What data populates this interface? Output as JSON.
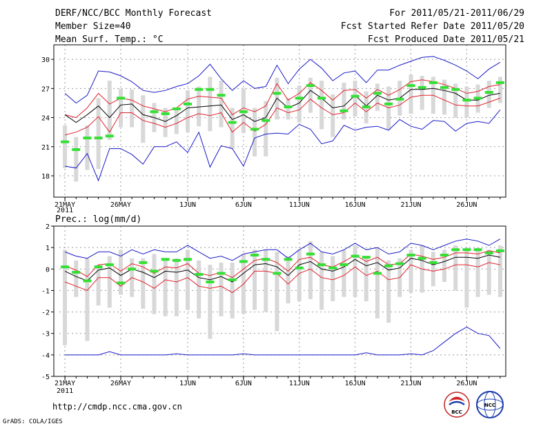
{
  "header": {
    "title": "DERF/NCC/BCC Monthly Forecast",
    "member_size": "Member Size=40",
    "for_range": "For 2011/05/21-2011/06/29",
    "started": "Fcst Started Refer Date 2011/05/20",
    "produced": "Fcst Produced Date 2011/05/21"
  },
  "footer": {
    "url": "http://cmdp.ncc.cma.gov.cn",
    "grads": "GrADS: COLA/IGES"
  },
  "logos": {
    "bcc_text": "BCC",
    "ncc_text": "NCC"
  },
  "colors": {
    "box": "#d8d8d8",
    "median": "#000000",
    "quartile": "#e0202a",
    "extreme": "#1818c8",
    "observed": "#33e033"
  },
  "chart_data": [
    {
      "type": "box-line",
      "title": "Mean Surf. Temp.: °C",
      "xlabel": "",
      "ylabel": "",
      "ylim": [
        15.8,
        31.5
      ],
      "yticks": [
        "18",
        "21",
        "24",
        "27",
        "30"
      ],
      "ytick_values": [
        18,
        21,
        24,
        27,
        30
      ],
      "grid": true,
      "days": 40,
      "xticks": [
        "21MAY",
        "26MAY",
        "1JUN",
        "6JUN",
        "11JUN",
        "16JUN",
        "21JUN",
        "26JUN"
      ],
      "xtick_days": [
        0,
        5,
        11,
        16,
        21,
        26,
        31,
        36
      ],
      "year_label": "2011",
      "median": [
        24.3,
        23.5,
        24.3,
        25.2,
        24.0,
        25.3,
        25.4,
        24.3,
        24.0,
        23.6,
        24.2,
        25.0,
        25.1,
        25.2,
        25.3,
        23.8,
        24.3,
        23.6,
        24.0,
        26.0,
        25.0,
        25.5,
        26.8,
        26.0,
        25.0,
        25.2,
        26.3,
        25.2,
        26.3,
        25.8,
        26.0,
        26.9,
        26.9,
        27.0,
        26.8,
        26.5,
        25.8,
        25.8,
        26.3,
        26.5
      ],
      "q3": [
        24.3,
        24.0,
        25.0,
        26.5,
        25.4,
        26.0,
        25.8,
        25.2,
        24.9,
        24.6,
        25.0,
        25.9,
        26.2,
        26.1,
        26.0,
        24.3,
        25.0,
        24.6,
        25.2,
        27.5,
        25.8,
        26.5,
        27.6,
        26.8,
        25.8,
        26.8,
        26.9,
        26.0,
        26.9,
        26.3,
        26.9,
        27.7,
        27.9,
        27.7,
        27.4,
        27.0,
        26.5,
        26.7,
        27.2,
        27.4
      ],
      "q1": [
        22.2,
        22.5,
        23.0,
        24.1,
        22.5,
        24.5,
        24.5,
        23.7,
        23.4,
        23.0,
        23.4,
        24.0,
        24.4,
        24.2,
        24.5,
        22.5,
        23.5,
        22.6,
        23.3,
        25.0,
        24.5,
        24.8,
        25.9,
        25.0,
        24.3,
        24.5,
        25.5,
        24.6,
        25.5,
        25.0,
        25.3,
        26.1,
        26.3,
        26.3,
        25.8,
        25.3,
        25.2,
        25.2,
        25.6,
        26.0
      ],
      "max": [
        26.5,
        25.5,
        26.3,
        28.8,
        28.7,
        28.3,
        27.7,
        26.8,
        26.6,
        26.8,
        27.2,
        27.5,
        28.3,
        29.5,
        28.0,
        26.8,
        27.8,
        27.0,
        27.2,
        29.4,
        27.5,
        29.0,
        30.0,
        29.1,
        27.8,
        28.6,
        28.8,
        27.6,
        28.9,
        28.9,
        29.4,
        29.8,
        30.2,
        30.3,
        29.9,
        29.4,
        28.8,
        28.0,
        29.0,
        29.7
      ],
      "min": [
        19.0,
        18.8,
        20.3,
        17.5,
        20.8,
        20.8,
        20.2,
        19.2,
        21.0,
        21.0,
        21.5,
        20.4,
        22.5,
        18.9,
        21.1,
        20.8,
        19.0,
        21.9,
        22.3,
        22.4,
        22.3,
        23.3,
        22.8,
        21.3,
        21.6,
        23.2,
        22.7,
        23.0,
        23.1,
        22.7,
        23.8,
        23.1,
        22.8,
        23.7,
        23.6,
        22.6,
        23.4,
        23.6,
        23.4,
        24.8
      ],
      "box_hi": [
        23.2,
        22.0,
        23.2,
        26.0,
        27.8,
        27.0,
        26.9,
        26.3,
        25.5,
        25.0,
        25.0,
        26.8,
        27.2,
        28.2,
        27.8,
        25.0,
        27.0,
        25.0,
        25.7,
        28.1,
        26.0,
        27.3,
        28.1,
        27.8,
        26.4,
        27.6,
        27.8,
        26.7,
        27.5,
        27.2,
        27.8,
        28.4,
        28.3,
        28.2,
        27.9,
        27.5,
        27.2,
        27.4,
        27.8,
        28.2
      ],
      "box_lo": [
        18.8,
        17.4,
        18.6,
        18.7,
        21.7,
        23.0,
        23.0,
        21.4,
        22.5,
        22.0,
        22.3,
        22.5,
        23.1,
        22.6,
        23.0,
        20.8,
        22.4,
        20.0,
        20.0,
        23.8,
        23.8,
        23.5,
        24.5,
        22.8,
        22.0,
        23.8,
        24.1,
        23.4,
        24.7,
        22.8,
        24.2,
        24.4,
        24.8,
        24.4,
        24.3,
        24.0,
        24.0,
        24.5,
        25.0,
        25.5
      ],
      "observed": [
        21.5,
        20.7,
        21.9,
        21.9,
        22.1,
        26.0,
        null,
        null,
        24.6,
        24.4,
        24.9,
        25.4,
        26.9,
        26.9,
        26.3,
        23.5,
        24.6,
        22.8,
        23.7,
        26.5,
        25.1,
        26.0,
        27.3,
        26.0,
        null,
        24.7,
        26.2,
        25.1,
        26.5,
        25.4,
        25.9,
        27.3,
        27.1,
        27.6,
        27.1,
        26.9,
        25.8,
        26.0,
        26.6,
        27.6
      ]
    },
    {
      "type": "box-line",
      "title": "Prec.: log(mm/d)",
      "xlabel": "",
      "ylabel": "",
      "ylim": [
        -5,
        2
      ],
      "yticks": [
        "-5",
        "-4",
        "-3",
        "-2",
        "-1",
        "0",
        "1",
        "2"
      ],
      "ytick_values": [
        -5,
        -4,
        -3,
        -2,
        -1,
        0,
        1,
        2
      ],
      "grid": true,
      "days": 40,
      "xticks": [
        "21MAY",
        "26MAY",
        "1JUN",
        "6JUN",
        "11JUN",
        "16JUN",
        "21JUN",
        "26JUN"
      ],
      "xtick_days": [
        0,
        5,
        11,
        16,
        21,
        26,
        31,
        36
      ],
      "year_label": "2011",
      "median": [
        -0.1,
        -0.35,
        -0.55,
        -0.05,
        0.05,
        -0.3,
        0.0,
        -0.15,
        -0.4,
        -0.1,
        -0.15,
        -0.05,
        -0.4,
        -0.5,
        -0.35,
        -0.6,
        -0.2,
        0.2,
        0.25,
        0.1,
        -0.3,
        0.2,
        0.35,
        0.0,
        -0.1,
        0.1,
        0.45,
        0.15,
        0.3,
        -0.05,
        0.05,
        0.5,
        0.4,
        0.2,
        0.35,
        0.55,
        0.55,
        0.5,
        0.65,
        0.55
      ],
      "q3": [
        0.15,
        -0.05,
        -0.35,
        0.2,
        0.25,
        -0.1,
        0.25,
        0.1,
        -0.2,
        0.1,
        0.05,
        0.25,
        -0.2,
        -0.3,
        -0.15,
        -0.4,
        0.0,
        0.4,
        0.5,
        0.3,
        -0.1,
        0.45,
        0.55,
        0.2,
        0.1,
        0.35,
        0.65,
        0.35,
        0.55,
        0.2,
        0.25,
        0.7,
        0.6,
        0.45,
        0.55,
        0.75,
        0.75,
        0.7,
        0.85,
        0.75
      ],
      "q1": [
        -0.6,
        -0.8,
        -1.0,
        -0.4,
        -0.4,
        -0.8,
        -0.4,
        -0.6,
        -0.9,
        -0.5,
        -0.6,
        -0.4,
        -0.8,
        -0.9,
        -0.8,
        -1.1,
        -0.7,
        -0.1,
        -0.1,
        -0.2,
        -0.7,
        -0.2,
        0.0,
        -0.4,
        -0.5,
        -0.3,
        0.1,
        -0.3,
        -0.1,
        -0.5,
        -0.4,
        0.2,
        0.0,
        -0.1,
        0.0,
        0.2,
        0.2,
        0.1,
        0.3,
        0.2
      ],
      "max": [
        0.8,
        0.6,
        0.5,
        0.8,
        0.8,
        0.6,
        0.9,
        0.7,
        0.9,
        0.8,
        0.8,
        1.1,
        0.8,
        0.5,
        0.6,
        0.4,
        0.7,
        0.8,
        0.9,
        0.9,
        0.5,
        0.9,
        1.2,
        0.8,
        0.7,
        0.9,
        1.2,
        0.9,
        1.0,
        0.7,
        0.8,
        1.2,
        1.1,
        0.9,
        1.1,
        1.3,
        1.4,
        1.3,
        1.1,
        1.4
      ],
      "min": [
        -1.6,
        -1.4,
        -1.7,
        -1.3,
        -1.2,
        -1.5,
        -1.4,
        -1.5,
        -1.8,
        -1.4,
        -1.5,
        -1.5,
        -1.7,
        -2.0,
        -1.7,
        -2.1,
        -1.7,
        -1.3,
        -1.2,
        -1.2,
        -1.6,
        -1.1,
        -1.0,
        -1.3,
        -1.4,
        -1.2,
        -0.9,
        -1.2,
        -1.0,
        -1.4,
        -1.2,
        -0.7,
        -0.9,
        -1.0,
        -0.9,
        -0.8,
        -0.6,
        -0.8,
        -0.6,
        -0.5
      ],
      "min_line": [
        -4.0,
        -4.0,
        -4.0,
        -4.0,
        -3.85,
        -4.0,
        -4.0,
        -4.0,
        -4.0,
        -4.0,
        -3.95,
        -4.0,
        -4.0,
        -4.0,
        -4.0,
        -4.0,
        -3.95,
        -4.0,
        -4.0,
        -4.0,
        -4.0,
        -4.0,
        -4.0,
        -4.0,
        -4.0,
        -4.0,
        -4.0,
        -3.9,
        -4.0,
        -4.0,
        -4.0,
        -3.95,
        -4.0,
        -3.8,
        -3.4,
        -3.0,
        -2.7,
        -3.0,
        -3.1,
        -3.7
      ],
      "box_hi": [
        0.9,
        0.4,
        0.5,
        0.2,
        0.6,
        0.9,
        0.5,
        0.5,
        0.7,
        0.5,
        0.5,
        0.9,
        0.4,
        0.2,
        0.3,
        0.3,
        0.7,
        0.9,
        0.9,
        0.8,
        0.6,
        0.9,
        1.3,
        0.8,
        0.6,
        0.9,
        1.1,
        0.6,
        1.0,
        0.4,
        0.5,
        0.9,
        1.1,
        0.8,
        0.9,
        1.1,
        1.0,
        1.0,
        0.9,
        1.1
      ],
      "box_lo": [
        -3.55,
        -1.3,
        -3.35,
        -1.7,
        -1.8,
        -1.2,
        -1.3,
        -1.85,
        -2.1,
        -2.2,
        -2.2,
        -1.9,
        -2.3,
        -3.25,
        -2.2,
        -2.3,
        -2.1,
        -1.9,
        -2.0,
        -2.9,
        -1.6,
        -1.5,
        -1.4,
        -1.9,
        -1.5,
        -1.3,
        -1.3,
        -1.5,
        -2.3,
        -2.5,
        -1.3,
        -1.1,
        -1.1,
        -0.8,
        -0.6,
        -1.0,
        -1.8,
        -1.3,
        -1.2,
        -1.3
      ],
      "observed": [
        0.1,
        -0.15,
        -0.55,
        0.1,
        0.2,
        -0.65,
        0.0,
        0.3,
        -0.1,
        0.45,
        0.4,
        0.45,
        -0.25,
        -0.6,
        -0.2,
        -0.5,
        0.35,
        0.65,
        0.45,
        -0.2,
        0.45,
        0.05,
        0.7,
        0.2,
        0.05,
        0.2,
        0.6,
        0.55,
        -0.2,
        0.15,
        0.25,
        0.65,
        0.5,
        0.3,
        0.65,
        0.9,
        0.9,
        0.9,
        0.75,
        0.85
      ]
    }
  ]
}
